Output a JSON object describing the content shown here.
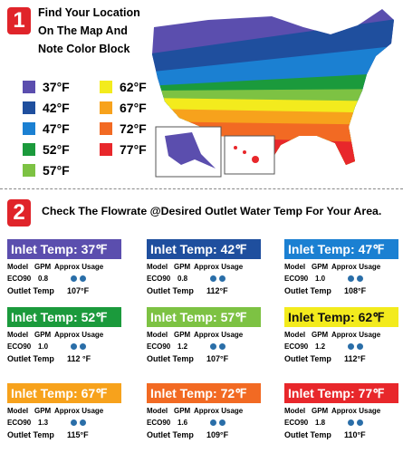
{
  "step1": {
    "number": "1",
    "title_lines": [
      "Find Your Location",
      "On The Map And",
      "Note Color Block"
    ],
    "legend": [
      {
        "label": "37°F",
        "color": "#5b4eae"
      },
      {
        "label": "42°F",
        "color": "#1f4f9e"
      },
      {
        "label": "47°F",
        "color": "#1b80d2"
      },
      {
        "label": "52°F",
        "color": "#1b9a3c"
      },
      {
        "label": "57°F",
        "color": "#7dc243"
      },
      {
        "label": "62°F",
        "color": "#f3eb1d"
      },
      {
        "label": "67°F",
        "color": "#f7a21c"
      },
      {
        "label": "72°F",
        "color": "#f26a23"
      },
      {
        "label": "77°F",
        "color": "#e8272b"
      }
    ]
  },
  "step2": {
    "number": "2",
    "title": "Check The Flowrate @Desired Outlet Water Temp For Your Area.",
    "inlet_label": "Inlet Temp:",
    "columns": [
      "Model",
      "GPM",
      "Approx Usage"
    ],
    "outlet_label": "Outlet Temp",
    "cards": [
      {
        "temp": "37℉",
        "model": "ECO90",
        "gpm": "0.8",
        "outlet": "107°F"
      },
      {
        "temp": "42℉",
        "model": "ECO90",
        "gpm": "0.8",
        "outlet": "112°F"
      },
      {
        "temp": "47℉",
        "model": "ECO90",
        "gpm": "1.0",
        "outlet": "108°F"
      },
      {
        "temp": "52℉",
        "model": "ECO90",
        "gpm": "1.0",
        "outlet": "112 °F"
      },
      {
        "temp": "57℉",
        "model": "ECO90",
        "gpm": "1.2",
        "outlet": "107°F"
      },
      {
        "temp": "62℉",
        "model": "ECO90",
        "gpm": "1.2",
        "outlet": "112°F"
      },
      {
        "temp": "67℉",
        "model": "ECO90",
        "gpm": "1.3",
        "outlet": "115°F"
      },
      {
        "temp": "72℉",
        "model": "ECO90",
        "gpm": "1.6",
        "outlet": "109°F"
      },
      {
        "temp": "77℉",
        "model": "ECO90",
        "gpm": "1.8",
        "outlet": "110°F"
      }
    ]
  }
}
